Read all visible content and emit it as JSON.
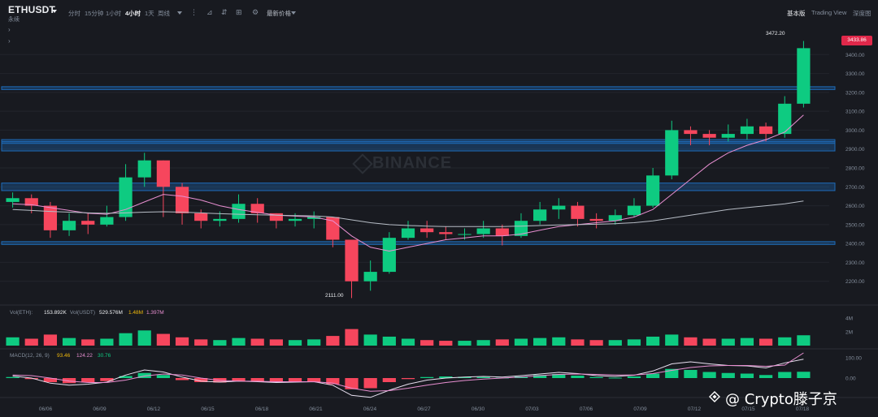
{
  "header": {
    "symbol": "ETHUSDT",
    "subtitle": "永续",
    "timeframes": [
      "分时",
      "15分钟",
      "1小时",
      "4小时",
      "1天",
      "周线"
    ],
    "active_timeframe": "4小时",
    "latest_price_label": "最新价格",
    "view_tabs": [
      "基本版",
      "Trading View",
      "深度图"
    ],
    "active_view": "基本版"
  },
  "watermark": "BINANCE",
  "price_axis": {
    "ticks": [
      "3400.00",
      "3300.00",
      "3200.00",
      "3100.00",
      "3000.00",
      "2900.00",
      "2800.00",
      "2700.00",
      "2600.00",
      "2500.00",
      "2400.00",
      "2300.00",
      "2200.00"
    ],
    "current_price": "3433.86"
  },
  "annotations": {
    "high": "3472.20",
    "low": "2111.00"
  },
  "date_axis": [
    "06/06",
    "06/09",
    "06/12",
    "06/15",
    "06/18",
    "06/21",
    "06/24",
    "06/27",
    "06/30",
    "07/03",
    "07/06",
    "07/09",
    "07/12",
    "07/15",
    "07/18"
  ],
  "volume": {
    "label": "Vol(ETH):",
    "eth": "153.892K",
    "usdt_label": "Vol(USDT)",
    "usdt": "529.576M",
    "ma1": "1.48M",
    "ma2": "1.397M",
    "ticks": [
      "4M",
      "2M"
    ]
  },
  "macd": {
    "label": "MACD(12, 26, 9)",
    "dif": "93.46",
    "dea": "124.22",
    "hist": "30.76",
    "ticks": [
      "100.00",
      "0.00"
    ]
  },
  "credit": "@ Crypto滕子京",
  "colors": {
    "up": "#0ecb81",
    "down": "#f6465d",
    "zone": "#1e6bb8",
    "ma7": "#f0b90b",
    "ma25": "#e88fd1",
    "ma99": "#b7bdc6"
  },
  "chart_data": {
    "type": "candlestick",
    "x": [
      "06/04",
      "06/05",
      "06/06",
      "06/07",
      "06/08",
      "06/09",
      "06/10",
      "06/11",
      "06/12",
      "06/13",
      "06/14",
      "06/15",
      "06/16",
      "06/17",
      "06/18",
      "06/19",
      "06/20",
      "06/21",
      "06/22",
      "06/23",
      "06/24",
      "06/25",
      "06/26",
      "06/27",
      "06/28",
      "06/29",
      "06/30",
      "07/01",
      "07/02",
      "07/03",
      "07/04",
      "07/05",
      "07/06",
      "07/07",
      "07/08",
      "07/09",
      "07/10",
      "07/11",
      "07/12",
      "07/13",
      "07/14",
      "07/15",
      "07/16"
    ],
    "close": [
      2640,
      2600,
      2470,
      2520,
      2500,
      2540,
      2750,
      2840,
      2700,
      2560,
      2520,
      2530,
      2610,
      2560,
      2520,
      2530,
      2540,
      2420,
      2200,
      2250,
      2430,
      2480,
      2460,
      2450,
      2450,
      2480,
      2440,
      2520,
      2580,
      2600,
      2530,
      2520,
      2550,
      2600,
      2760,
      3000,
      2980,
      2960,
      2980,
      3020,
      2980,
      3140,
      3434
    ],
    "high": [
      2670,
      2660,
      2620,
      2560,
      2560,
      2600,
      2820,
      2880,
      2840,
      2720,
      2580,
      2570,
      2660,
      2640,
      2560,
      2560,
      2570,
      2540,
      2420,
      2310,
      2460,
      2520,
      2520,
      2490,
      2480,
      2520,
      2500,
      2560,
      2620,
      2640,
      2620,
      2560,
      2580,
      2640,
      2800,
      3050,
      3020,
      3000,
      3030,
      3060,
      3040,
      3180,
      3472
    ],
    "low": [
      2590,
      2560,
      2430,
      2440,
      2450,
      2490,
      2520,
      2700,
      2540,
      2500,
      2480,
      2490,
      2510,
      2510,
      2480,
      2490,
      2480,
      2380,
      2111,
      2150,
      2240,
      2420,
      2430,
      2420,
      2420,
      2430,
      2390,
      2430,
      2500,
      2530,
      2490,
      2480,
      2500,
      2540,
      2590,
      2740,
      2920,
      2920,
      2940,
      2950,
      2940,
      2960,
      3120
    ],
    "ma25": [
      2610,
      2605,
      2590,
      2575,
      2560,
      2555,
      2580,
      2620,
      2660,
      2650,
      2630,
      2600,
      2580,
      2565,
      2550,
      2545,
      2540,
      2520,
      2440,
      2380,
      2360,
      2380,
      2400,
      2420,
      2430,
      2440,
      2440,
      2450,
      2470,
      2490,
      2500,
      2510,
      2520,
      2540,
      2580,
      2660,
      2740,
      2820,
      2880,
      2920,
      2950,
      2990,
      3080
    ],
    "ma99": [
      2580,
      2575,
      2570,
      2566,
      2562,
      2560,
      2562,
      2566,
      2568,
      2566,
      2562,
      2558,
      2555,
      2552,
      2550,
      2548,
      2546,
      2540,
      2525,
      2510,
      2500,
      2495,
      2492,
      2490,
      2490,
      2490,
      2490,
      2492,
      2495,
      2498,
      2500,
      2502,
      2505,
      2510,
      2520,
      2535,
      2550,
      2565,
      2580,
      2590,
      2600,
      2610,
      2625
    ],
    "zones": [
      [
        3215,
        3230
      ],
      [
        2930,
        2950
      ],
      [
        2890,
        2940
      ],
      [
        2680,
        2720
      ],
      [
        2395,
        2410
      ]
    ],
    "ylim": [
      2100,
      3500
    ],
    "volume": [
      1.2,
      1.0,
      1.6,
      1.1,
      0.9,
      1.0,
      1.8,
      2.2,
      1.7,
      1.2,
      0.9,
      0.8,
      1.1,
      1.0,
      0.9,
      0.8,
      0.9,
      1.4,
      2.4,
      1.6,
      1.3,
      1.0,
      0.8,
      0.7,
      0.7,
      0.8,
      0.9,
      1.0,
      1.1,
      1.2,
      0.9,
      0.8,
      0.8,
      0.9,
      1.3,
      1.6,
      1.2,
      1.0,
      1.0,
      1.1,
      1.0,
      1.2,
      1.5
    ],
    "macd_hist": [
      5,
      -5,
      -20,
      -25,
      -22,
      -15,
      10,
      25,
      15,
      -10,
      -20,
      -22,
      -15,
      -18,
      -22,
      -20,
      -18,
      -30,
      -55,
      -50,
      -20,
      -5,
      5,
      8,
      6,
      5,
      2,
      8,
      15,
      20,
      12,
      5,
      2,
      8,
      22,
      45,
      40,
      30,
      25,
      22,
      15,
      30,
      31
    ],
    "macd_dif": [
      10,
      0,
      -25,
      -35,
      -30,
      -20,
      15,
      40,
      30,
      5,
      -15,
      -20,
      -15,
      -18,
      -22,
      -20,
      -18,
      -35,
      -85,
      -95,
      -60,
      -30,
      -10,
      0,
      5,
      8,
      5,
      12,
      20,
      28,
      22,
      12,
      8,
      14,
      35,
      70,
      80,
      70,
      62,
      60,
      50,
      75,
      93
    ],
    "macd_dea": [
      15,
      12,
      0,
      -15,
      -22,
      -22,
      -10,
      10,
      20,
      15,
      0,
      -12,
      -15,
      -16,
      -18,
      -18,
      -18,
      -25,
      -50,
      -65,
      -62,
      -50,
      -35,
      -22,
      -12,
      -5,
      0,
      5,
      12,
      18,
      20,
      18,
      15,
      15,
      22,
      38,
      52,
      60,
      62,
      62,
      58,
      64,
      124
    ],
    "ylabel": "",
    "xlabel": ""
  }
}
